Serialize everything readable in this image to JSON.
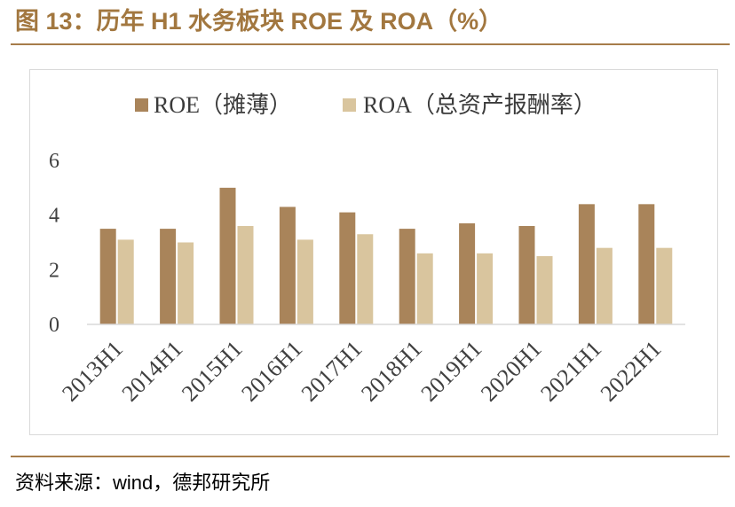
{
  "title": "图 13：历年 H1 水务板块 ROE 及 ROA（%）",
  "source": "资料来源：wind，德邦研究所",
  "colors": {
    "accent": "#A2773F",
    "roe": "#A9845A",
    "roa": "#D9C59E",
    "axis": "#D9D9D9"
  },
  "chart_data": {
    "type": "bar",
    "categories": [
      "2013H1",
      "2014H1",
      "2015H1",
      "2016H1",
      "2017H1",
      "2018H1",
      "2019H1",
      "2020H1",
      "2021H1",
      "2022H1"
    ],
    "series": [
      {
        "name": "ROE（摊薄）",
        "values": [
          3.5,
          3.5,
          5.0,
          4.3,
          4.1,
          3.5,
          3.7,
          3.6,
          4.4,
          4.4
        ]
      },
      {
        "name": "ROA（总资产报酬率）",
        "values": [
          3.1,
          3.0,
          3.6,
          3.1,
          3.3,
          2.6,
          2.6,
          2.5,
          2.8,
          2.8
        ]
      }
    ],
    "ylim": [
      0,
      6
    ],
    "yticks": [
      0,
      2,
      4,
      6
    ],
    "legend": "top",
    "grid": false
  }
}
